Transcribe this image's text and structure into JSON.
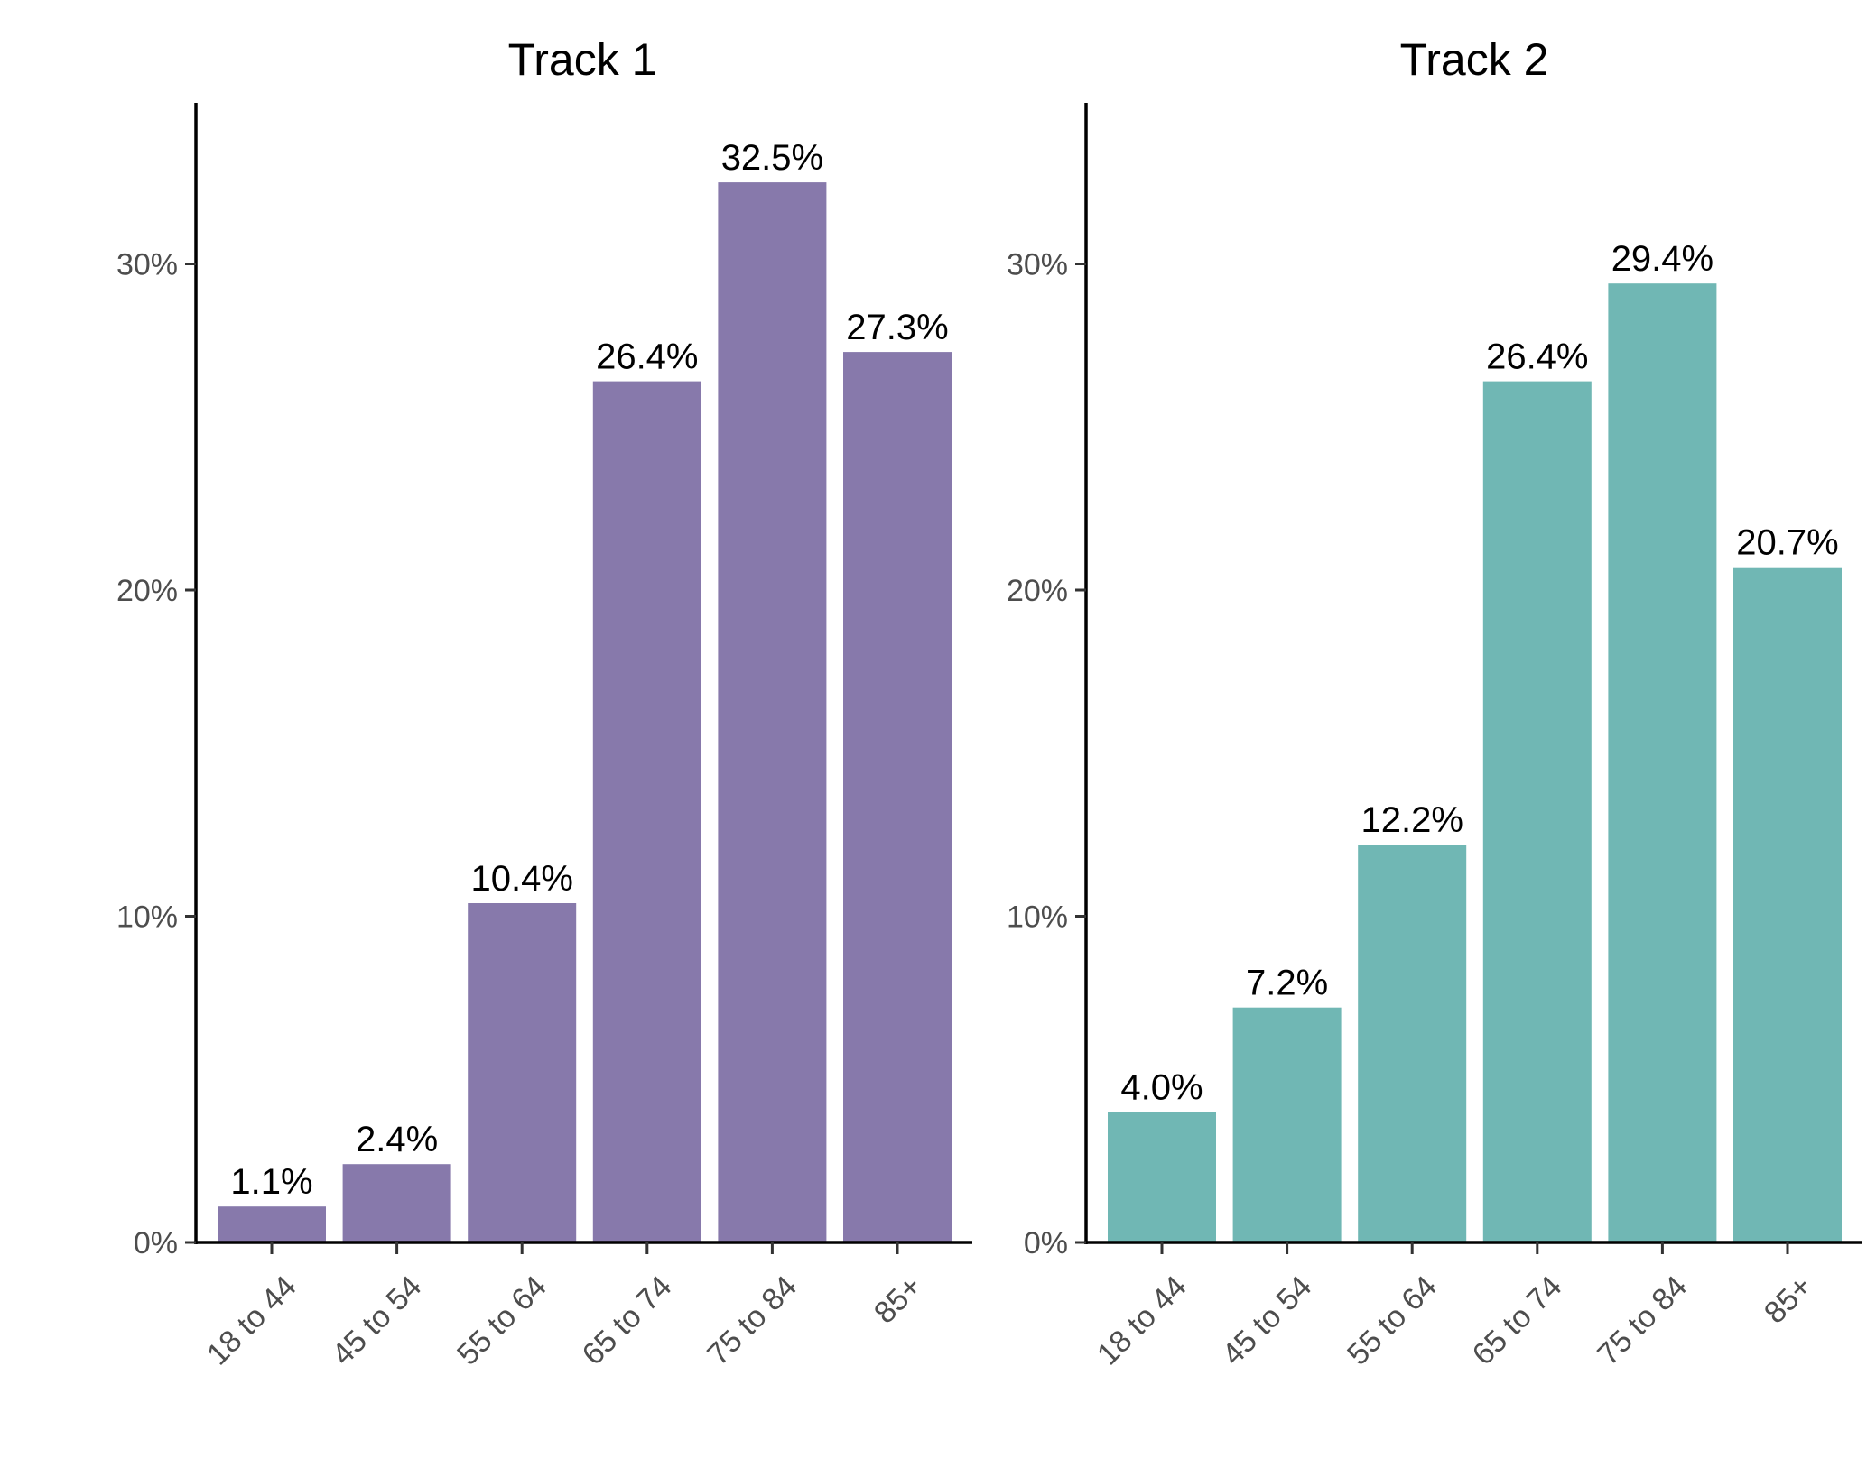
{
  "chart_data": [
    {
      "type": "bar",
      "title": "Track 1",
      "categories": [
        "18 to 44",
        "45 to 54",
        "55 to 64",
        "65 to 74",
        "75 to 84",
        "85+"
      ],
      "values": [
        1.1,
        2.4,
        10.4,
        26.4,
        32.5,
        27.3
      ],
      "labels": [
        "1.1%",
        "2.4%",
        "10.4%",
        "26.4%",
        "32.5%",
        "27.3%"
      ],
      "color": "#8779AB",
      "xlabel": "",
      "ylabel": "",
      "ylim": [
        0,
        35
      ],
      "yticks": [
        0,
        10,
        20,
        30
      ],
      "ytick_labels": [
        "0%",
        "10%",
        "20%",
        "30%"
      ],
      "grid": false,
      "legend": "none"
    },
    {
      "type": "bar",
      "title": "Track 2",
      "categories": [
        "18 to 44",
        "45 to 54",
        "55 to 64",
        "65 to 74",
        "75 to 84",
        "85+"
      ],
      "values": [
        4.0,
        7.2,
        12.2,
        26.4,
        29.4,
        20.7
      ],
      "labels": [
        "4.0%",
        "7.2%",
        "12.2%",
        "26.4%",
        "29.4%",
        "20.7%"
      ],
      "color": "#70B7B4",
      "xlabel": "",
      "ylabel": "",
      "ylim": [
        0,
        35
      ],
      "yticks": [
        0,
        10,
        20,
        30
      ],
      "ytick_labels": [
        "0%",
        "10%",
        "20%",
        "30%"
      ],
      "grid": false,
      "legend": "none"
    }
  ]
}
